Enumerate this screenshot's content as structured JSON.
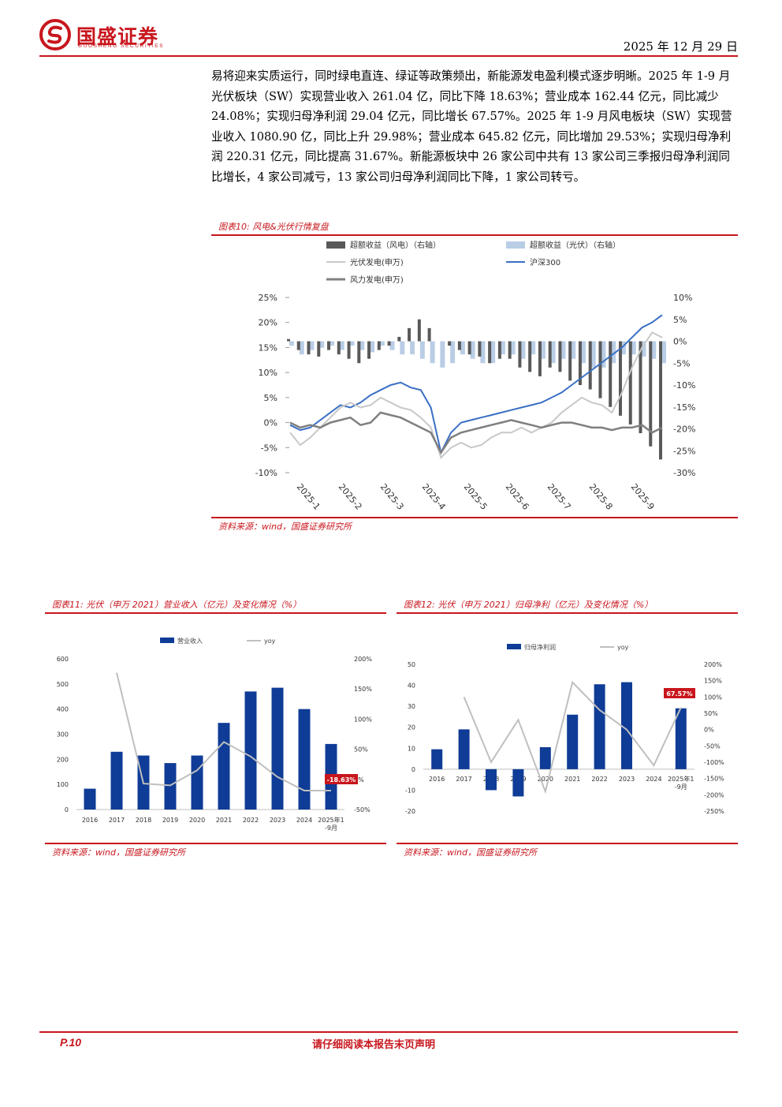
{
  "header": {
    "brand_cn": "国盛证券",
    "brand_en": "GUOSHENG SECURITIES",
    "date": "2025 年 12 月 29 日"
  },
  "body": {
    "paragraph": "易将迎来实质运行，同时绿电直连、绿证等政策频出，新能源发电盈利模式逐步明晰。2025 年 1-9 月光伏板块（SW）实现营业收入 261.04 亿，同比下降 18.63%；营业成本 162.44 亿元，同比减少 24.08%；实现归母净利润 29.04 亿元，同比增长 67.57%。2025 年 1-9 月风电板块（SW）实现营业收入 1080.90 亿，同比上升 29.98%；营业成本 645.82 亿元，同比增加 29.53%；实现归母净利润 220.31 亿元，同比提高 31.67%。新能源板块中 26 家公司中共有 13 家公司三季报归母净利润同比增长，4 家公司减亏，13 家公司归母净利润同比下降，1 家公司转亏。"
  },
  "fig10": {
    "title": "图表10:  风电&光伏行情复盘",
    "source": "资料来源：wind，国盛证券研究所",
    "legend": [
      "超额收益（风电）（右轴）",
      "超额收益（光伏）（右轴）",
      "光伏发电(申万)",
      "沪深300",
      "风力发电(申万)"
    ],
    "colors": {
      "wind_excess": "#595959",
      "pv_excess": "#b9cde5",
      "pv_line": "#c8c8c8",
      "hs300": "#3a6fc4",
      "wind_line": "#7f7f7f"
    }
  },
  "fig11": {
    "title": "图表11:  光伏（申万 2021）营业收入（亿元）及变化情况（%）",
    "source": "资料来源：wind，国盛证券研究所",
    "legend": [
      "营业收入",
      "yoy"
    ],
    "callout": "-18.63%"
  },
  "fig12": {
    "title": "图表12:  光伏（申万 2021）归母净利（亿元）及变化情况（%）",
    "source": "资料来源：wind，国盛证券研究所",
    "legend": [
      "归母净利润",
      "yoy"
    ],
    "callout": "67.57%"
  },
  "chart_data": [
    {
      "type": "line",
      "x_ticks": [
        "2025-1",
        "2025-2",
        "2025-3",
        "2025-4",
        "2025-5",
        "2025-6",
        "2025-7",
        "2025-8",
        "2025-9"
      ],
      "left_ticks": [
        "25%",
        "20%",
        "15%",
        "10%",
        "5%",
        "0%",
        "-5%",
        "-10%"
      ],
      "right_ticks": [
        "10%",
        "5%",
        "0%",
        "-5%",
        "-10%",
        "-15%",
        "-20%",
        "-25%",
        "-30%"
      ],
      "ylim_left": [
        -10,
        25
      ],
      "ylim_right": [
        -30,
        10
      ],
      "series": [
        {
          "name": "沪深300",
          "axis": "left",
          "values": [
            -0.5,
            -1.5,
            -1,
            0.5,
            2,
            3.5,
            3,
            4,
            5.5,
            6.5,
            7.5,
            8,
            7,
            6.5,
            3,
            -6,
            -2,
            0,
            0.5,
            1,
            1.5,
            2,
            2.5,
            3,
            3.5,
            4,
            5,
            6,
            7.5,
            9,
            10.5,
            12,
            13.5,
            15,
            17,
            19,
            20,
            21.5
          ]
        },
        {
          "name": "光伏发电(申万)",
          "axis": "left",
          "values": [
            -2,
            -4.5,
            -3,
            -1,
            1,
            3,
            4,
            3,
            3.5,
            5,
            4,
            3,
            2.5,
            1,
            -1,
            -7,
            -5,
            -4,
            -5,
            -4.5,
            -3,
            -2,
            -2,
            -1,
            -2,
            -1,
            0,
            2,
            3.5,
            5,
            4,
            3.5,
            2,
            6,
            11,
            15,
            18,
            17
          ]
        },
        {
          "name": "风力发电(申万)",
          "axis": "left",
          "values": [
            0,
            -1,
            -0.5,
            -1,
            0,
            0.5,
            1,
            -0.5,
            0,
            2,
            1.5,
            1,
            0,
            -1,
            -2,
            -6,
            -3,
            -2,
            -1.5,
            -1,
            -0.5,
            0,
            0.5,
            0,
            -0.5,
            -1,
            -0.5,
            0,
            0,
            -0.5,
            -1,
            -1,
            -1.5,
            -1,
            -1,
            -0.5,
            -2,
            -1
          ]
        },
        {
          "name": "超额收益（风电）（右轴）",
          "axis": "right",
          "values": [
            0.5,
            -2,
            -3,
            -3.5,
            -2,
            -3,
            -4,
            -5,
            -4,
            -2,
            -1,
            1,
            3,
            5,
            3,
            0,
            -1,
            -2,
            -3,
            -3.5,
            -5,
            -4,
            -4,
            -6,
            -7,
            -8,
            -6,
            -7,
            -9,
            -10,
            -11,
            -13,
            -15,
            -17,
            -19,
            -21,
            -24,
            -27
          ]
        },
        {
          "name": "超额收益（光伏）（右轴）",
          "axis": "right",
          "values": [
            -1,
            -3,
            -2,
            -1.5,
            -1,
            -2,
            -1,
            -2,
            -2.5,
            -1,
            -2,
            -3,
            -3,
            -4,
            -5,
            -6,
            -5,
            -3,
            -4,
            -5,
            -5,
            -3,
            -3,
            -4,
            -3,
            -4,
            -5,
            -4,
            -4,
            -5,
            -6,
            -6,
            -5,
            -3,
            -3,
            -3.5,
            -4,
            -5
          ]
        }
      ]
    },
    {
      "type": "bar",
      "categories": [
        "2016",
        "2017",
        "2018",
        "2019",
        "2020",
        "2021",
        "2022",
        "2023",
        "2024",
        "2025年1-9月"
      ],
      "series": [
        {
          "name": "营业收入",
          "axis": "left",
          "values": [
            83,
            230,
            215,
            185,
            215,
            345,
            470,
            485,
            400,
            261.04
          ]
        },
        {
          "name": "yoy",
          "axis": "right",
          "type": "line",
          "values": [
            null,
            177,
            -7,
            -10,
            15,
            62,
            38,
            4,
            -18.63,
            -18.63
          ]
        }
      ],
      "ylim": [
        0,
        600
      ],
      "ylim_right": [
        -50,
        200
      ],
      "yticks": [
        "600",
        "500",
        "400",
        "300",
        "200",
        "100",
        "0"
      ],
      "yticks_right": [
        "200%",
        "150%",
        "100%",
        "50%",
        "0%",
        "-50%"
      ]
    },
    {
      "type": "bar",
      "categories": [
        "2016",
        "2017",
        "2018",
        "2019",
        "2020",
        "2021",
        "2022",
        "2023",
        "2024",
        "2025年1-9月"
      ],
      "series": [
        {
          "name": "归母净利润",
          "axis": "left",
          "values": [
            9.5,
            19,
            -10,
            -13,
            10.5,
            26,
            40.5,
            41.5,
            0,
            29.04
          ]
        },
        {
          "name": "yoy",
          "axis": "right",
          "type": "line",
          "values": [
            null,
            100,
            -100,
            30,
            -190,
            145,
            60,
            0,
            -110,
            67.57
          ]
        }
      ],
      "ylim": [
        -20,
        50
      ],
      "ylim_right": [
        -250,
        200
      ],
      "yticks": [
        "50",
        "40",
        "30",
        "20",
        "10",
        "0",
        "-10",
        "-20"
      ],
      "yticks_right": [
        "200%",
        "150%",
        "100%",
        "50%",
        "0%",
        "-50%",
        "-100%",
        "-150%",
        "-200%",
        "-250%"
      ]
    }
  ]
}
